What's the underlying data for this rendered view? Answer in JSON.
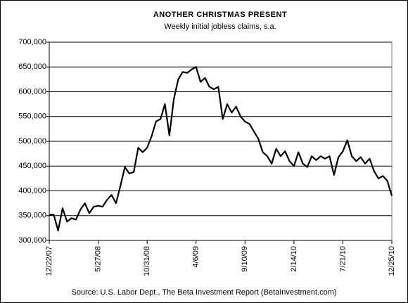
{
  "chart_data": {
    "type": "line",
    "title": "ANOTHER CHRISTMAS PRESENT",
    "subtitle": "Weekly initial jobless claims, s.a.",
    "source": "Source: U.S. Labor Dept., The Beta Investment Report (BetaInvestment.com)",
    "color": "#000000",
    "grid": true,
    "categories": [
      "12/22/07",
      null,
      null,
      null,
      null,
      null,
      null,
      null,
      null,
      null,
      null,
      "5/27/08",
      null,
      null,
      null,
      null,
      null,
      null,
      null,
      null,
      null,
      null,
      "10/31/08",
      null,
      null,
      null,
      null,
      null,
      null,
      null,
      null,
      null,
      null,
      "4/6/09",
      null,
      null,
      null,
      null,
      null,
      null,
      null,
      null,
      null,
      null,
      "9/10/09",
      null,
      null,
      null,
      null,
      null,
      null,
      null,
      null,
      null,
      null,
      "2/14/10",
      null,
      null,
      null,
      null,
      null,
      null,
      null,
      null,
      null,
      null,
      "7/21/10",
      null,
      null,
      null,
      null,
      null,
      null,
      null,
      null,
      null,
      null,
      "12/25/10"
    ],
    "values": [
      352000,
      352000,
      320000,
      365000,
      338000,
      345000,
      342000,
      362000,
      375000,
      355000,
      368000,
      370000,
      368000,
      382000,
      392000,
      375000,
      410000,
      448000,
      435000,
      438000,
      487000,
      478000,
      487000,
      510000,
      540000,
      545000,
      575000,
      512000,
      585000,
      625000,
      640000,
      638000,
      645000,
      650000,
      620000,
      628000,
      610000,
      605000,
      610000,
      545000,
      575000,
      558000,
      570000,
      550000,
      540000,
      535000,
      520000,
      505000,
      478000,
      470000,
      455000,
      485000,
      470000,
      480000,
      460000,
      450000,
      478000,
      455000,
      448000,
      470000,
      462000,
      470000,
      465000,
      470000,
      432000,
      468000,
      480000,
      502000,
      470000,
      460000,
      468000,
      455000,
      465000,
      440000,
      425000,
      430000,
      420000,
      390000
    ],
    "ylim": [
      300000,
      700000
    ],
    "yticks": [
      {
        "value": 300000,
        "label": "300,000"
      },
      {
        "value": 350000,
        "label": "350,000"
      },
      {
        "value": 400000,
        "label": "400,000"
      },
      {
        "value": 450000,
        "label": "450,000"
      },
      {
        "value": 500000,
        "label": "500,000"
      },
      {
        "value": 550000,
        "label": "550,000"
      },
      {
        "value": 600000,
        "label": "600,000"
      },
      {
        "value": 650000,
        "label": "650,000"
      },
      {
        "value": 700000,
        "label": "700,000"
      }
    ]
  }
}
